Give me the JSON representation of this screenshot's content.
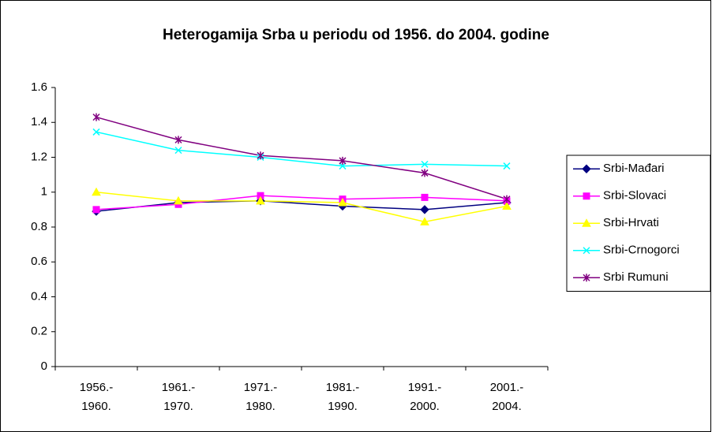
{
  "chart_data": {
    "type": "line",
    "title": "Heterogamija Srba u periodu od 1956. do 2004. godine",
    "categories": [
      "1956.- 1960.",
      "1961.- 1970.",
      "1971.- 1980.",
      "1981.- 1990.",
      "1991.- 2000.",
      "2001.- 2004."
    ],
    "series": [
      {
        "name": "Srbi-Mađari",
        "color": "#000080",
        "marker": "diamond",
        "values": [
          0.89,
          0.94,
          0.95,
          0.92,
          0.9,
          0.94
        ]
      },
      {
        "name": "Srbi-Slovaci",
        "color": "#ff00ff",
        "marker": "square",
        "values": [
          0.9,
          0.93,
          0.98,
          0.96,
          0.97,
          0.95
        ]
      },
      {
        "name": "Srbi-Hrvati",
        "color": "#ffff00",
        "marker": "triangle",
        "values": [
          1.0,
          0.95,
          0.95,
          0.94,
          0.83,
          0.92
        ]
      },
      {
        "name": "Srbi-Crnogorci",
        "color": "#00ffff",
        "marker": "x",
        "values": [
          1.345,
          1.24,
          1.2,
          1.15,
          1.16,
          1.15
        ]
      },
      {
        "name": "Srbi Rumuni",
        "color": "#800080",
        "marker": "star",
        "values": [
          1.43,
          1.3,
          1.21,
          1.18,
          1.11,
          0.96
        ]
      }
    ],
    "ylim": [
      0,
      1.6
    ],
    "yticks": [
      0,
      0.2,
      0.4,
      0.6,
      0.8,
      1,
      1.2,
      1.4,
      1.6
    ],
    "grid": false,
    "legend": "right"
  }
}
